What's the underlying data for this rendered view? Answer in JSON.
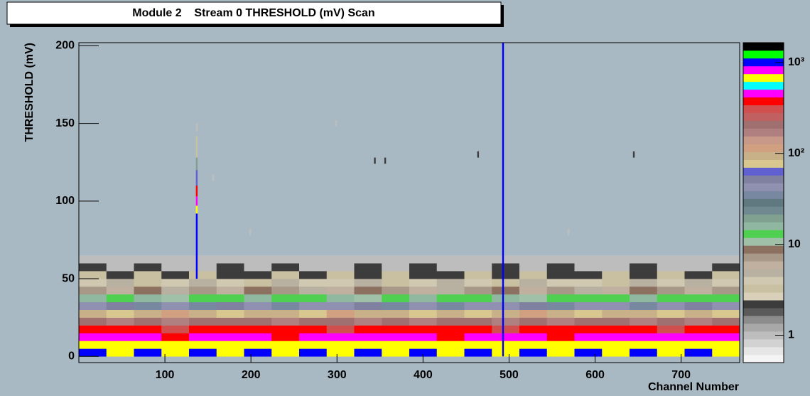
{
  "chart_data": {
    "type": "heatmap",
    "title": "Module 2    Stream 0 THRESHOLD (mV) Scan",
    "x_label": "Channel Number",
    "y_label": "THRESHOLD (mV)",
    "xlim": [
      0,
      768
    ],
    "xticks": [
      100,
      200,
      300,
      400,
      500,
      600,
      700
    ],
    "ylim": [
      -4,
      202
    ],
    "yticks": [
      0,
      50,
      100,
      150,
      200
    ],
    "zlim": [
      0.5,
      1650
    ],
    "zscale": "log",
    "zticks": [
      1,
      10,
      {
        "value": 100,
        "label": "10²"
      },
      {
        "value": 1000,
        "label": "10³"
      }
    ],
    "palette": [
      "#f4f4f4",
      "#e6e6e6",
      "#d2d2d2",
      "#bdbdbd",
      "#a8a8a8",
      "#8c8c8c",
      "#5a5a5a",
      "#3c3c3c",
      "#d8d0b8",
      "#c8c0a0",
      "#d0c8b0",
      "#b8b0a0",
      "#c0b0a0",
      "#a89888",
      "#8c7060",
      "#a0c0a8",
      "#50d050",
      "#90b8a0",
      "#80a090",
      "#708890",
      "#607880",
      "#7888a0",
      "#9090b0",
      "#8080a0",
      "#6060d0",
      "#d8c890",
      "#c8b088",
      "#d0a080",
      "#c89888",
      "#b08080",
      "#a07070",
      "#c06060",
      "#d05050",
      "#ff0000",
      "#ff00ff",
      "#00ffff",
      "#ffff00",
      "#ff00ff",
      "#0000ff",
      "#00ff00",
      "#000000"
    ],
    "xbins": [
      0,
      32,
      64,
      96,
      128,
      160,
      192,
      224,
      256,
      288,
      320,
      352,
      384,
      416,
      448,
      480,
      512,
      544,
      576,
      608,
      640,
      672,
      704,
      736,
      768
    ],
    "ybins": [
      0,
      5,
      10,
      15,
      20,
      25,
      30,
      35,
      40,
      45,
      50,
      55,
      60,
      65
    ],
    "z": [
      [
        950,
        700,
        1000,
        680,
        920,
        720,
        980,
        650,
        940,
        700,
        1000,
        690,
        960,
        710,
        930,
        680,
        990,
        700,
        950,
        670,
        1000,
        720,
        940,
        690
      ],
      [
        660,
        640,
        700,
        620,
        680,
        650,
        700,
        630,
        670,
        690,
        640,
        660,
        700,
        630,
        680,
        650,
        690,
        640,
        660,
        700,
        630,
        670,
        650,
        680
      ],
      [
        480,
        420,
        500,
        400,
        460,
        430,
        490,
        410,
        470,
        440,
        500,
        420,
        480,
        400,
        460,
        430,
        490,
        410,
        470,
        440,
        500,
        420,
        480,
        450
      ],
      [
        360,
        340,
        380,
        330,
        350,
        370,
        340,
        360,
        380,
        330,
        350,
        370,
        340,
        360,
        380,
        330,
        350,
        370,
        340,
        360,
        380,
        330,
        350,
        360
      ],
      [
        200,
        180,
        220,
        170,
        210,
        190,
        200,
        160,
        190,
        220,
        180,
        200,
        170,
        190,
        220,
        180,
        200,
        160,
        190,
        210,
        180,
        200,
        170,
        190
      ],
      [
        90,
        80,
        100,
        110,
        90,
        70,
        100,
        90,
        80,
        110,
        90,
        100,
        70,
        90,
        80,
        100,
        110,
        90,
        80,
        90,
        100,
        70,
        90,
        80
      ],
      [
        40,
        50,
        35,
        45,
        38,
        50,
        40,
        35,
        45,
        42,
        50,
        38,
        44,
        35,
        45,
        40,
        50,
        38,
        42,
        45,
        35,
        44,
        50,
        40
      ],
      [
        15,
        12,
        16,
        11,
        14,
        13,
        15,
        12,
        14,
        16,
        11,
        13,
        15,
        12,
        14,
        16,
        11,
        13,
        14,
        12,
        15,
        13,
        14,
        12
      ],
      [
        7,
        6,
        8,
        5,
        7,
        6,
        8,
        7,
        5,
        6,
        8,
        7,
        6,
        5,
        7,
        8,
        6,
        7,
        5,
        6,
        8,
        7,
        6,
        7
      ],
      [
        4,
        5,
        3,
        4,
        5,
        4,
        3,
        5,
        4,
        4,
        5,
        3,
        4,
        5,
        4,
        3,
        5,
        4,
        4,
        3,
        5,
        4,
        5,
        4
      ],
      [
        3,
        2,
        3,
        2,
        3,
        2,
        2,
        3,
        2,
        3,
        2,
        3,
        2,
        2,
        3,
        2,
        3,
        2,
        2,
        3,
        2,
        3,
        2,
        3
      ],
      [
        2,
        1,
        2,
        1,
        1,
        2,
        1,
        2,
        1,
        1,
        2,
        1,
        2,
        1,
        1,
        2,
        1,
        2,
        1,
        1,
        2,
        1,
        1,
        2
      ],
      [
        1,
        1,
        1,
        1,
        1,
        1,
        1,
        1,
        1,
        1,
        1,
        1,
        1,
        1,
        1,
        1,
        1,
        1,
        1,
        1,
        1,
        1,
        1,
        1
      ]
    ],
    "cells": [
      [
        136,
        138,
        50,
        92,
        1000
      ],
      [
        136,
        138,
        92,
        97,
        650
      ],
      [
        136,
        138,
        97,
        103,
        500
      ],
      [
        136,
        138,
        103,
        110,
        370
      ],
      [
        136,
        138,
        110,
        120,
        60
      ],
      [
        136,
        138,
        120,
        128,
        20
      ],
      [
        136,
        138,
        128,
        142,
        3
      ],
      [
        136,
        138,
        145,
        150,
        1
      ],
      [
        492,
        494,
        0,
        202,
        1000
      ],
      [
        298,
        300,
        148,
        152,
        1
      ],
      [
        343,
        345,
        124,
        128,
        2
      ],
      [
        355,
        357,
        124,
        128,
        2
      ],
      [
        463,
        465,
        128,
        132,
        2
      ],
      [
        644,
        646,
        128,
        132,
        2
      ],
      [
        198,
        200,
        78,
        82,
        1
      ],
      [
        568,
        570,
        78,
        82,
        1
      ],
      [
        155,
        157,
        113,
        117,
        1
      ]
    ]
  }
}
